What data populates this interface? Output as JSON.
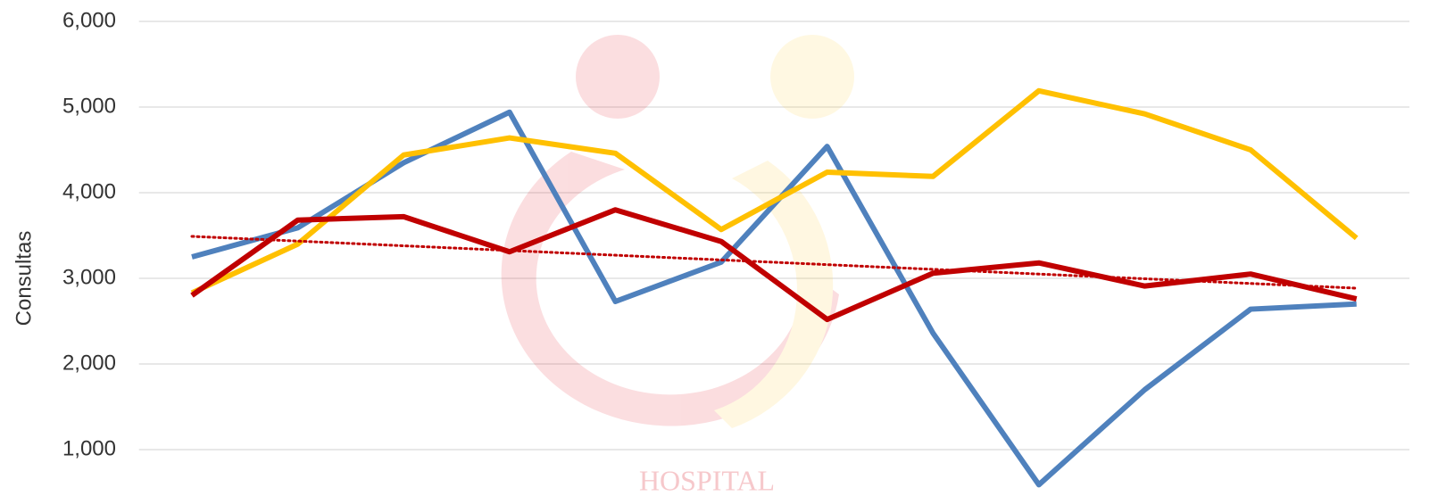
{
  "chart_data": {
    "type": "line",
    "y_label": "Consultas",
    "watermark": "HOSPITAL",
    "categories": [
      null,
      null,
      null,
      null,
      null,
      null,
      null,
      null,
      null,
      null,
      null,
      null
    ],
    "series": [
      {
        "color": "#4f81bd",
        "values": [
          3250,
          3590,
          4350,
          4940,
          2730,
          3190,
          4540,
          2360,
          590,
          1700,
          2640,
          2700
        ]
      },
      {
        "color": "#ffc000",
        "values": [
          2830,
          3400,
          4440,
          4640,
          4460,
          3570,
          4240,
          4190,
          5190,
          4920,
          4500,
          3470
        ]
      },
      {
        "color": "#c00000",
        "values": [
          2800,
          3680,
          3720,
          3310,
          3800,
          3430,
          2520,
          3060,
          3180,
          2910,
          3050,
          2760
        ]
      }
    ],
    "trendline": {
      "color": "#c00000",
      "style": "dotted",
      "values": [
        3490,
        2885
      ]
    },
    "ylim": [
      0,
      6000
    ],
    "yticks": [
      {
        "value": 1000,
        "label": "1,000"
      },
      {
        "value": 2000,
        "label": "2,000"
      },
      {
        "value": 3000,
        "label": "3,000"
      },
      {
        "value": 4000,
        "label": "4,000"
      },
      {
        "value": 5000,
        "label": "5,000"
      },
      {
        "value": 6000,
        "label": "6,000"
      }
    ],
    "grid": true
  }
}
